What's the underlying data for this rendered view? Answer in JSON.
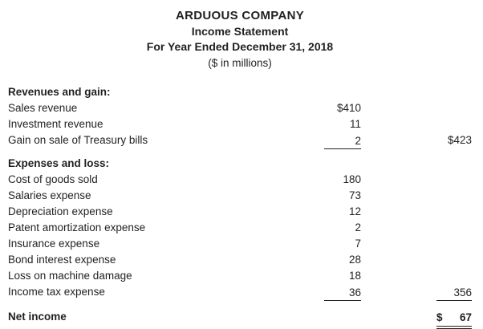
{
  "header": {
    "company": "ARDUOUS COMPANY",
    "statement": "Income Statement",
    "period": "For Year Ended December 31, 2018",
    "units": "($ in millions)"
  },
  "sections": [
    {
      "title": "Revenues and gain:",
      "rows": [
        {
          "label": "Sales revenue",
          "col1": "$410",
          "col2": "",
          "u1": false,
          "u2": false
        },
        {
          "label": "Investment revenue",
          "col1": "11",
          "col2": "",
          "u1": false,
          "u2": false
        },
        {
          "label": "Gain on sale of Treasury bills",
          "col1": "2",
          "col2": "$423",
          "u1": true,
          "u2": false
        }
      ]
    },
    {
      "title": "Expenses and loss:",
      "rows": [
        {
          "label": "Cost of goods sold",
          "col1": "180",
          "col2": "",
          "u1": false,
          "u2": false
        },
        {
          "label": "Salaries expense",
          "col1": "73",
          "col2": "",
          "u1": false,
          "u2": false
        },
        {
          "label": "Depreciation expense",
          "col1": "12",
          "col2": "",
          "u1": false,
          "u2": false
        },
        {
          "label": "Patent amortization expense",
          "col1": "2",
          "col2": "",
          "u1": false,
          "u2": false
        },
        {
          "label": "Insurance expense",
          "col1": "7",
          "col2": "",
          "u1": false,
          "u2": false
        },
        {
          "label": "Bond interest expense",
          "col1": "28",
          "col2": "",
          "u1": false,
          "u2": false
        },
        {
          "label": "Loss on machine damage",
          "col1": "18",
          "col2": "",
          "u1": false,
          "u2": false
        },
        {
          "label": "Income tax expense",
          "col1": "36",
          "col2": "356",
          "u1": true,
          "u2": true
        }
      ]
    }
  ],
  "total": {
    "label": "Net income",
    "currency": "$",
    "value": "67"
  },
  "colors": {
    "text": "#231f20",
    "background": "#ffffff",
    "rule": "#231f20"
  }
}
